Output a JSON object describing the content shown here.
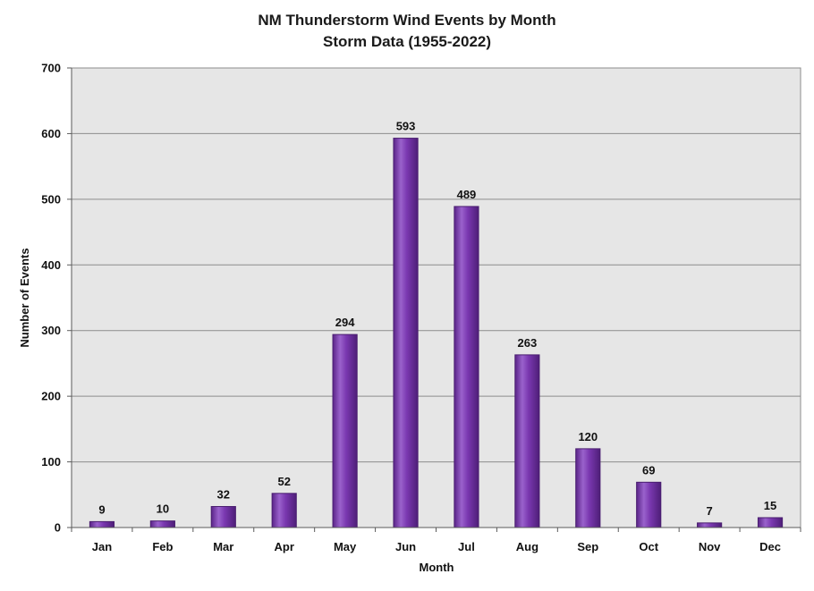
{
  "chart_data": {
    "type": "bar",
    "title": "NM Thunderstorm Wind Events by Month",
    "subtitle": "Storm Data (1955-2022)",
    "xlabel": "Month",
    "ylabel": "Number of Events",
    "categories": [
      "Jan",
      "Feb",
      "Mar",
      "Apr",
      "May",
      "Jun",
      "Jul",
      "Aug",
      "Sep",
      "Oct",
      "Nov",
      "Dec"
    ],
    "values": [
      9,
      10,
      32,
      52,
      294,
      593,
      489,
      263,
      120,
      69,
      7,
      15
    ],
    "ylim": [
      0,
      700
    ],
    "yticks": [
      0,
      100,
      200,
      300,
      400,
      500,
      600,
      700
    ],
    "grid": true,
    "legend": "none",
    "colors": {
      "bar": "#7030a0",
      "bar_highlight": "#a070d0",
      "bar_edge": "#4a1e70",
      "plot_background": "#e6e6e6",
      "gridline": "#8c8c8c"
    }
  }
}
